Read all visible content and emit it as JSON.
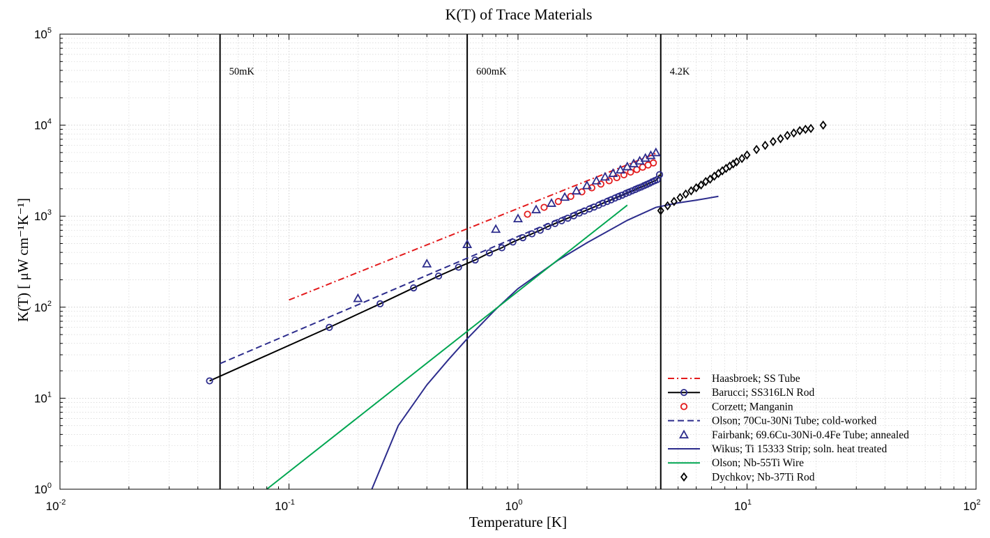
{
  "chart_data": {
    "type": "line",
    "title": "K(T) of Trace Materials",
    "xlabel": "Temperature [K]",
    "ylabel": "K(T) [ μW cm⁻¹K⁻¹]",
    "xscale": "log",
    "yscale": "log",
    "xlim": [
      0.01,
      100
    ],
    "ylim": [
      1,
      100000
    ],
    "x_ticks": [
      {
        "base": "10",
        "exp": "-2"
      },
      {
        "base": "10",
        "exp": "-1"
      },
      {
        "base": "10",
        "exp": "0"
      },
      {
        "base": "10",
        "exp": "1"
      },
      {
        "base": "10",
        "exp": "2"
      }
    ],
    "y_ticks": [
      {
        "base": "10",
        "exp": "0"
      },
      {
        "base": "10",
        "exp": "1"
      },
      {
        "base": "10",
        "exp": "2"
      },
      {
        "base": "10",
        "exp": "3"
      },
      {
        "base": "10",
        "exp": "4"
      },
      {
        "base": "10",
        "exp": "5"
      }
    ],
    "grid": true,
    "legend_position": "bottom-right",
    "vertical_lines": [
      {
        "x": 0.05,
        "label": "50mK"
      },
      {
        "x": 0.6,
        "label": "600mK"
      },
      {
        "x": 4.2,
        "label": "4.2K"
      }
    ],
    "series": [
      {
        "name": "Haasbroek; SS Tube",
        "color": "#e31a1c",
        "line": "dashdot",
        "marker": "none",
        "x": [
          0.1,
          4.0
        ],
        "y": [
          120,
          4900
        ]
      },
      {
        "name": "Barucci; SS316LN Rod",
        "color": "#000000",
        "line": "solid",
        "marker": "circle",
        "marker_color": "#2c2c8c",
        "x": [
          0.045,
          0.15,
          0.25,
          0.35,
          0.45,
          0.55,
          0.65,
          0.75,
          0.85,
          0.95,
          1.05,
          1.15,
          1.25,
          1.35,
          1.45,
          1.55,
          1.65,
          1.75,
          1.85,
          1.95,
          2.05,
          2.15,
          2.25,
          2.35,
          2.45,
          2.55,
          2.65,
          2.75,
          2.85,
          2.95,
          3.05,
          3.15,
          3.25,
          3.35,
          3.45,
          3.55,
          3.65,
          3.75,
          3.85,
          3.95,
          4.05,
          4.15
        ],
        "y": [
          15.5,
          60,
          109,
          163,
          220,
          275,
          330,
          395,
          450,
          520,
          580,
          640,
          700,
          770,
          830,
          890,
          950,
          1010,
          1080,
          1140,
          1200,
          1260,
          1320,
          1390,
          1450,
          1510,
          1580,
          1640,
          1700,
          1770,
          1830,
          1900,
          1960,
          2030,
          2090,
          2160,
          2230,
          2300,
          2380,
          2450,
          2520,
          2860
        ]
      },
      {
        "name": "Corzett; Manganin",
        "color": "#e31a1c",
        "line": "none",
        "marker": "circle",
        "x": [
          1.1,
          1.3,
          1.5,
          1.7,
          1.9,
          2.1,
          2.3,
          2.5,
          2.7,
          2.9,
          3.1,
          3.3,
          3.5,
          3.7,
          3.9
        ],
        "y": [
          1050,
          1250,
          1450,
          1650,
          1850,
          2050,
          2250,
          2450,
          2650,
          2850,
          3050,
          3250,
          3450,
          3650,
          3850
        ]
      },
      {
        "name": "Olson; 70Cu-30Ni Tube; cold-worked",
        "color": "#2c2c8c",
        "line": "dashed",
        "marker": "none",
        "x": [
          0.05,
          4.0
        ],
        "y": [
          24,
          2650
        ]
      },
      {
        "name": "Fairbank; 69.6Cu-30Ni-0.4Fe Tube; annealed",
        "color": "#2c2c8c",
        "line": "none",
        "marker": "triangle",
        "x": [
          0.2,
          0.4,
          0.6,
          0.8,
          1.0,
          1.2,
          1.4,
          1.6,
          1.8,
          2.0,
          2.2,
          2.4,
          2.6,
          2.8,
          3.0,
          3.2,
          3.4,
          3.6,
          3.8,
          4.0
        ],
        "y": [
          125,
          300,
          490,
          720,
          940,
          1180,
          1390,
          1620,
          1900,
          2170,
          2450,
          2700,
          2960,
          3230,
          3500,
          3780,
          4050,
          4350,
          4650,
          5000
        ]
      },
      {
        "name": "Wikus; Ti 15333 Strip; soln. heat treated",
        "color": "#2c2c8c",
        "line": "solid",
        "marker": "none",
        "x": [
          0.23,
          0.3,
          0.4,
          0.5,
          0.6,
          0.8,
          1.0,
          1.5,
          2.0,
          3.0,
          4.0,
          5.0,
          6.0,
          7.5
        ],
        "y": [
          1,
          5,
          14,
          27,
          45,
          95,
          160,
          330,
          510,
          900,
          1250,
          1400,
          1500,
          1650
        ]
      },
      {
        "name": "Olson; Nb-55Ti Wire",
        "color": "#00a651",
        "line": "solid",
        "marker": "none",
        "x": [
          0.08,
          3.0
        ],
        "y": [
          1,
          1320
        ]
      },
      {
        "name": "Dychkov; Nb-37Ti Rod",
        "color": "#000000",
        "line": "none",
        "marker": "diamond",
        "x": [
          4.2,
          4.5,
          4.8,
          5.1,
          5.4,
          5.7,
          6.0,
          6.3,
          6.6,
          6.9,
          7.2,
          7.5,
          7.8,
          8.1,
          8.4,
          8.7,
          9.0,
          9.5,
          10.0,
          11.0,
          12.0,
          13.0,
          14.0,
          15.0,
          16.0,
          17.0,
          18.0,
          19.0,
          21.5
        ],
        "y": [
          1150,
          1300,
          1450,
          1600,
          1750,
          1900,
          2050,
          2200,
          2400,
          2550,
          2750,
          2950,
          3150,
          3350,
          3550,
          3750,
          3950,
          4300,
          4700,
          5400,
          6000,
          6600,
          7100,
          7700,
          8200,
          8700,
          9000,
          9200,
          10000
        ]
      }
    ]
  }
}
